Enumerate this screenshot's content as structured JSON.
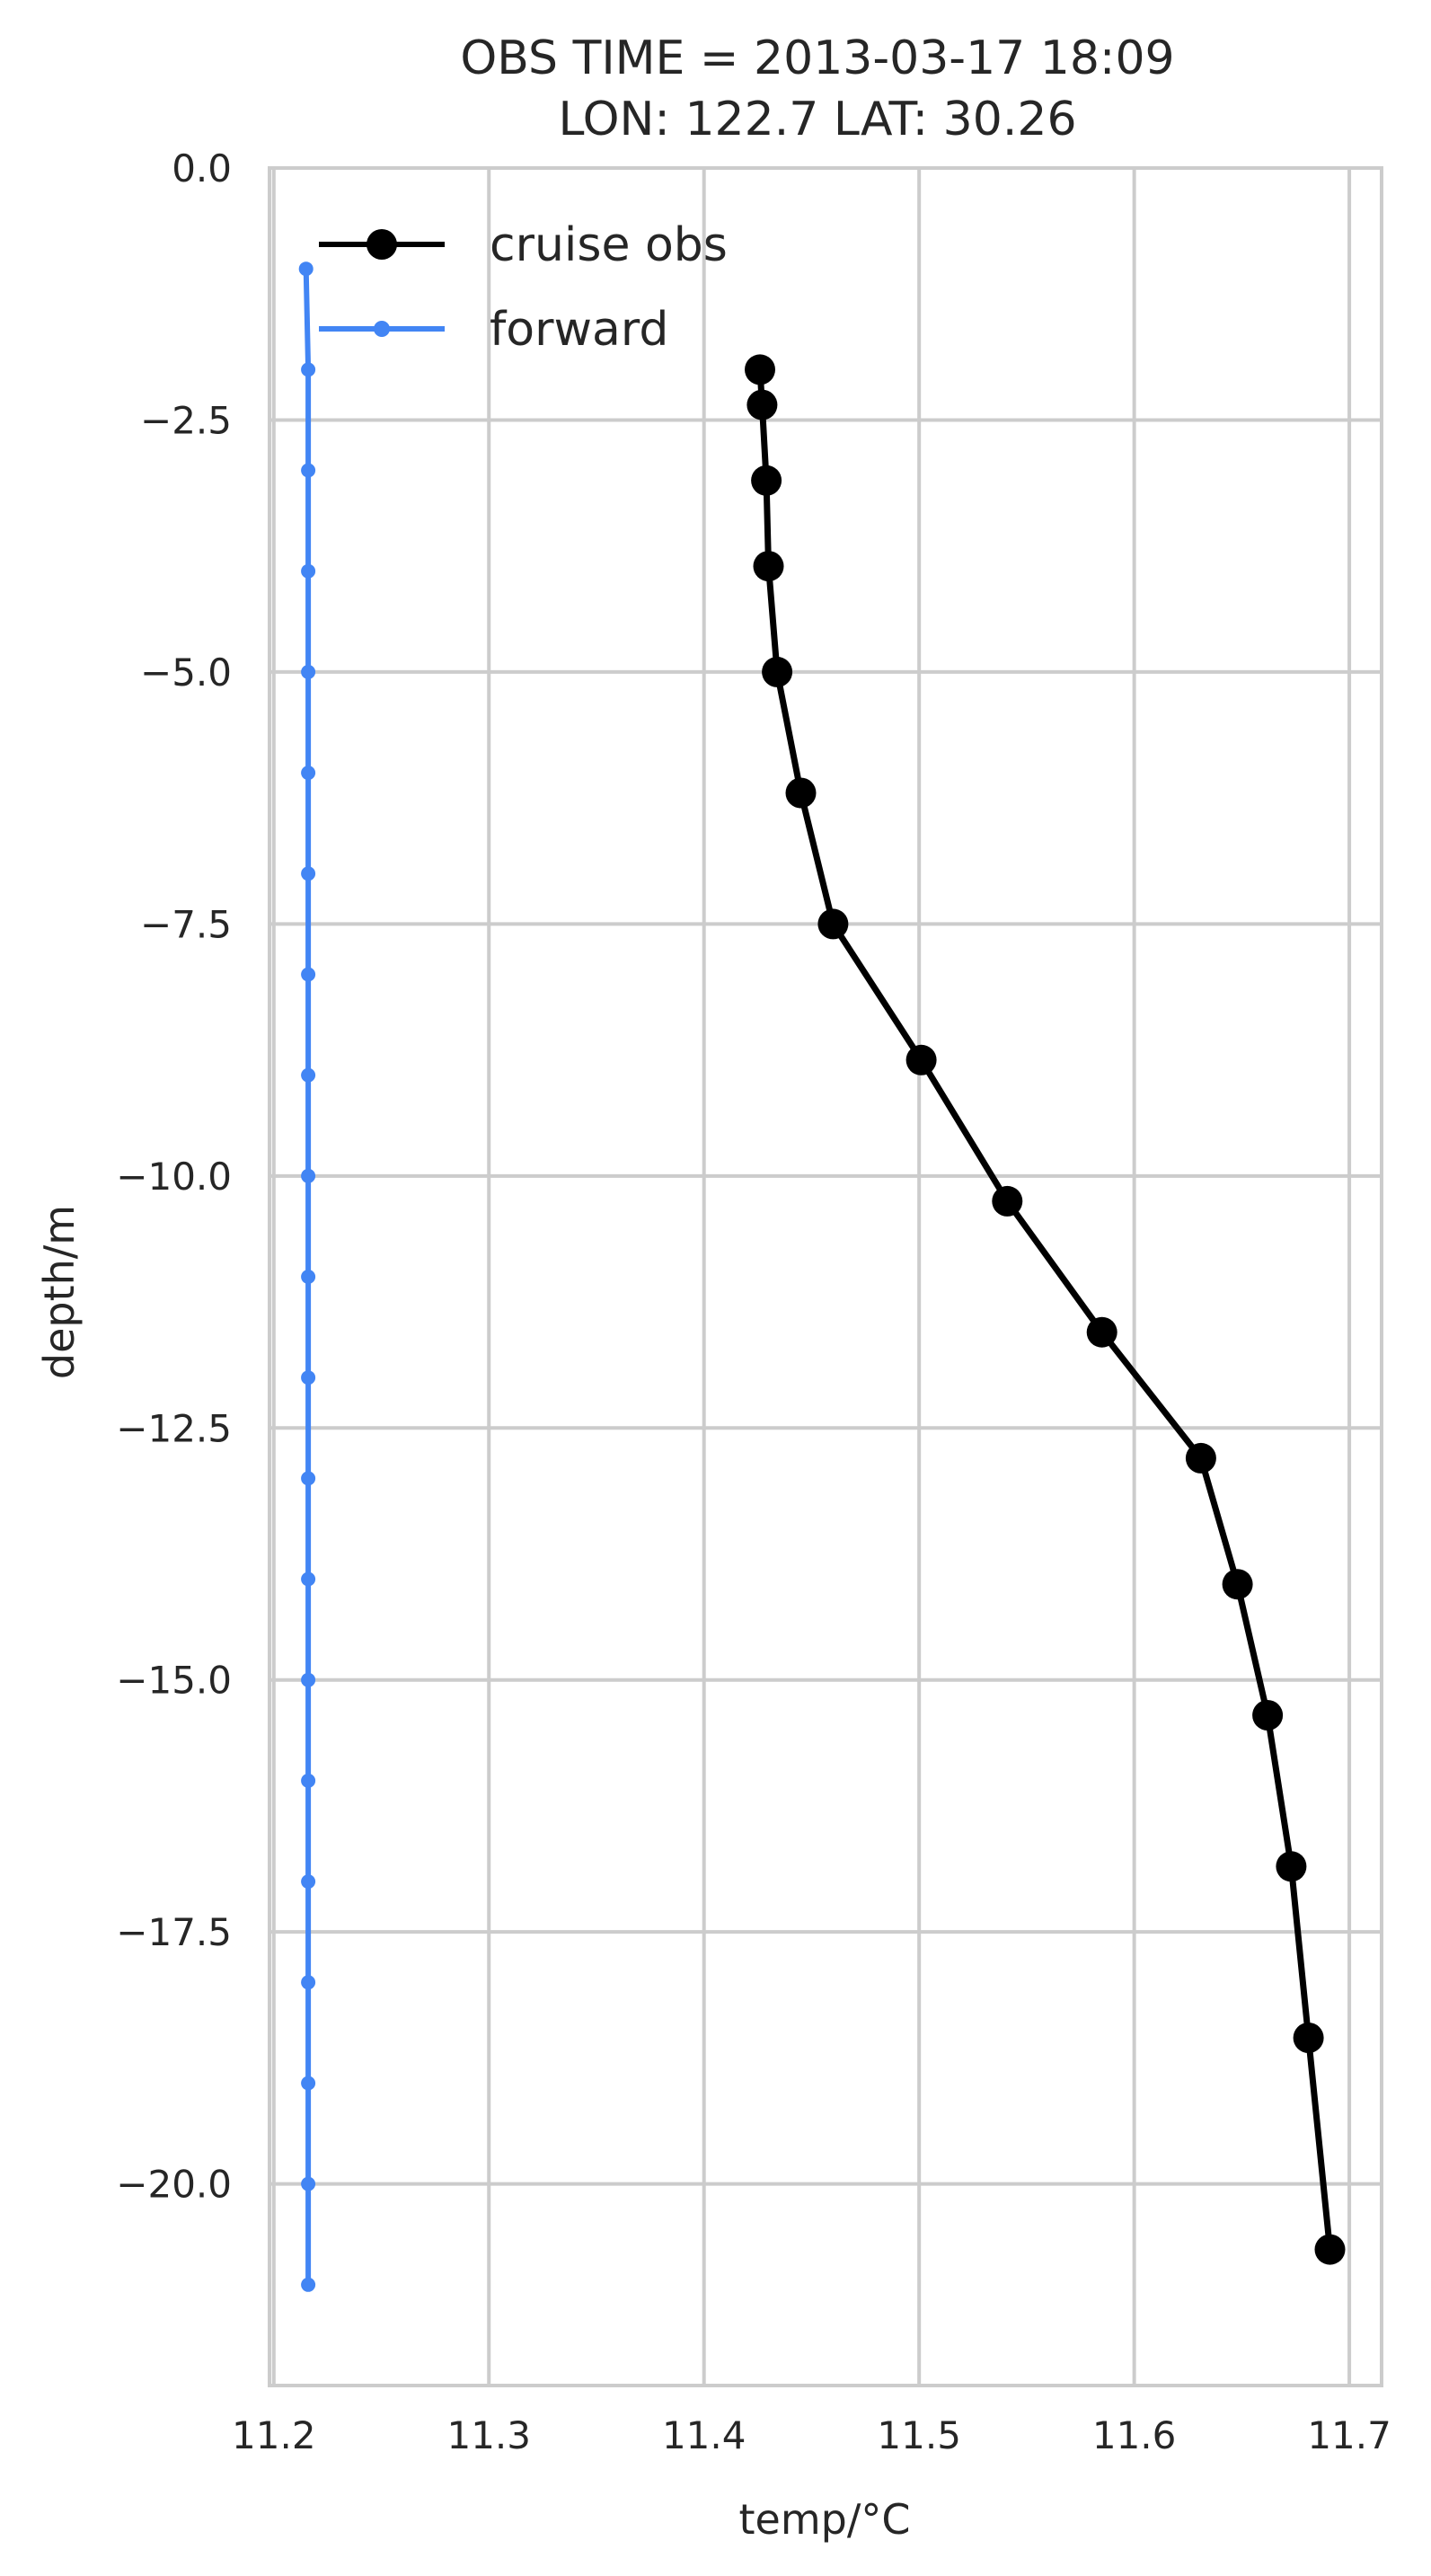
{
  "chart_data": {
    "type": "line",
    "title": "OBS TIME = 2013-03-17 18:09",
    "subtitle": "LON: 122.7 LAT: 30.26",
    "xlabel": "temp/°C",
    "ylabel": "depth/m",
    "xlim": [
      11.198,
      11.715
    ],
    "ylim": [
      -22.0,
      0.0
    ],
    "x_ticks": [
      11.2,
      11.3,
      11.4,
      11.5,
      11.6,
      11.7
    ],
    "x_tick_labels": [
      "11.2",
      "11.3",
      "11.4",
      "11.5",
      "11.6",
      "11.7"
    ],
    "y_ticks": [
      0.0,
      -2.5,
      -5.0,
      -7.5,
      -10.0,
      -12.5,
      -15.0,
      -17.5,
      -20.0
    ],
    "y_tick_labels": [
      "0.0",
      "−2.5",
      "−5.0",
      "−7.5",
      "−10.0",
      "−12.5",
      "−15.0",
      "−17.5",
      "−20.0"
    ],
    "grid": true,
    "legend": "top-left",
    "series": [
      {
        "name": "cruise obs",
        "color": "#000000",
        "marker": "large-dot",
        "points": [
          {
            "x": 11.426,
            "y": -2.0
          },
          {
            "x": 11.427,
            "y": -2.35
          },
          {
            "x": 11.429,
            "y": -3.1
          },
          {
            "x": 11.43,
            "y": -3.95
          },
          {
            "x": 11.434,
            "y": -5.0
          },
          {
            "x": 11.445,
            "y": -6.2
          },
          {
            "x": 11.46,
            "y": -7.5
          },
          {
            "x": 11.501,
            "y": -8.85
          },
          {
            "x": 11.541,
            "y": -10.25
          },
          {
            "x": 11.585,
            "y": -11.55
          },
          {
            "x": 11.631,
            "y": -12.8
          },
          {
            "x": 11.648,
            "y": -14.05
          },
          {
            "x": 11.662,
            "y": -15.35
          },
          {
            "x": 11.673,
            "y": -16.85
          },
          {
            "x": 11.681,
            "y": -18.55
          },
          {
            "x": 11.691,
            "y": -20.65
          }
        ]
      },
      {
        "name": "forward",
        "color": "#4285f4",
        "marker": "small-dot",
        "points": [
          {
            "x": 11.215,
            "y": -1.0
          },
          {
            "x": 11.216,
            "y": -2.0
          },
          {
            "x": 11.216,
            "y": -3.0
          },
          {
            "x": 11.216,
            "y": -4.0
          },
          {
            "x": 11.216,
            "y": -5.0
          },
          {
            "x": 11.216,
            "y": -6.0
          },
          {
            "x": 11.216,
            "y": -7.0
          },
          {
            "x": 11.216,
            "y": -8.0
          },
          {
            "x": 11.216,
            "y": -9.0
          },
          {
            "x": 11.216,
            "y": -10.0
          },
          {
            "x": 11.216,
            "y": -11.0
          },
          {
            "x": 11.216,
            "y": -12.0
          },
          {
            "x": 11.216,
            "y": -13.0
          },
          {
            "x": 11.216,
            "y": -14.0
          },
          {
            "x": 11.216,
            "y": -15.0
          },
          {
            "x": 11.216,
            "y": -16.0
          },
          {
            "x": 11.216,
            "y": -17.0
          },
          {
            "x": 11.216,
            "y": -18.0
          },
          {
            "x": 11.216,
            "y": -19.0
          },
          {
            "x": 11.216,
            "y": -20.0
          },
          {
            "x": 11.216,
            "y": -21.0
          }
        ]
      }
    ]
  }
}
